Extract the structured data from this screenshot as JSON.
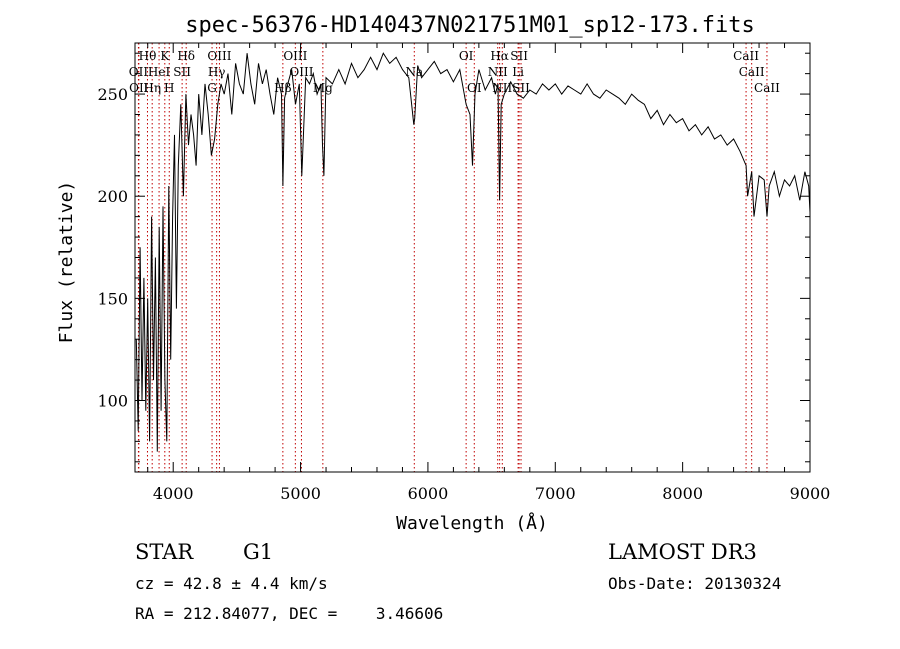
{
  "chart_data": {
    "type": "line",
    "title": "spec-56376-HD140437N021751M01_sp12-173.fits",
    "xlabel": "Wavelength (Å)",
    "ylabel": "Flux (relative)",
    "xlim": [
      3700,
      9000
    ],
    "ylim": [
      65,
      275
    ],
    "x_ticks": [
      4000,
      5000,
      6000,
      7000,
      8000,
      9000
    ],
    "y_ticks": [
      100,
      150,
      200,
      250
    ],
    "x_minor_step": 200,
    "y_minor_step": 10,
    "grid": false,
    "series": [
      {
        "name": "flux",
        "x": [
          3710,
          3725,
          3740,
          3755,
          3770,
          3785,
          3800,
          3815,
          3830,
          3845,
          3860,
          3875,
          3890,
          3905,
          3920,
          3935,
          3950,
          3965,
          3980,
          3995,
          4010,
          4025,
          4040,
          4060,
          4080,
          4100,
          4120,
          4140,
          4160,
          4180,
          4200,
          4225,
          4250,
          4275,
          4300,
          4325,
          4350,
          4375,
          4400,
          4430,
          4460,
          4490,
          4520,
          4550,
          4580,
          4610,
          4640,
          4670,
          4700,
          4730,
          4760,
          4790,
          4820,
          4850,
          4861,
          4875,
          4900,
          4930,
          4960,
          4990,
          5010,
          5040,
          5070,
          5100,
          5130,
          5160,
          5172,
          5183,
          5200,
          5250,
          5300,
          5350,
          5400,
          5450,
          5500,
          5550,
          5600,
          5650,
          5700,
          5750,
          5800,
          5850,
          5889,
          5896,
          5920,
          5950,
          6000,
          6050,
          6100,
          6150,
          6200,
          6250,
          6300,
          6330,
          6350,
          6370,
          6400,
          6450,
          6500,
          6530,
          6550,
          6563,
          6575,
          6600,
          6650,
          6700,
          6750,
          6800,
          6850,
          6900,
          6950,
          7000,
          7050,
          7100,
          7150,
          7200,
          7250,
          7300,
          7350,
          7400,
          7450,
          7500,
          7550,
          7600,
          7650,
          7700,
          7750,
          7800,
          7850,
          7900,
          7950,
          8000,
          8050,
          8100,
          8150,
          8200,
          8250,
          8300,
          8350,
          8400,
          8450,
          8498,
          8510,
          8542,
          8560,
          8600,
          8640,
          8662,
          8680,
          8720,
          8760,
          8800,
          8840,
          8880,
          8920,
          8960,
          8990,
          9000
        ],
        "y": [
          130,
          85,
          175,
          100,
          160,
          95,
          150,
          80,
          190,
          110,
          170,
          75,
          185,
          95,
          195,
          110,
          80,
          205,
          120,
          190,
          230,
          145,
          215,
          245,
          200,
          250,
          225,
          240,
          230,
          215,
          250,
          230,
          255,
          240,
          220,
          228,
          245,
          255,
          250,
          260,
          240,
          265,
          255,
          250,
          270,
          255,
          245,
          265,
          255,
          262,
          250,
          240,
          258,
          250,
          205,
          248,
          255,
          262,
          245,
          255,
          210,
          258,
          255,
          260,
          250,
          255,
          225,
          210,
          258,
          255,
          262,
          255,
          265,
          258,
          262,
          268,
          262,
          270,
          265,
          268,
          262,
          258,
          235,
          238,
          264,
          258,
          262,
          266,
          260,
          262,
          256,
          262,
          245,
          240,
          215,
          250,
          262,
          252,
          258,
          250,
          255,
          198,
          245,
          250,
          256,
          250,
          248,
          252,
          250,
          255,
          252,
          255,
          250,
          254,
          252,
          250,
          255,
          250,
          248,
          252,
          250,
          248,
          245,
          250,
          247,
          245,
          238,
          242,
          235,
          240,
          236,
          238,
          232,
          235,
          230,
          234,
          228,
          230,
          225,
          228,
          222,
          215,
          200,
          212,
          190,
          210,
          208,
          190,
          205,
          212,
          200,
          208,
          205,
          210,
          198,
          212,
          205,
          192
        ]
      }
    ],
    "line_labels": [
      "Hθ",
      "OII",
      "OII",
      "K",
      "HeI",
      "Hη",
      "SII",
      "H",
      "Hδ",
      "OIII",
      "Hγ",
      "G",
      "Hβ",
      "OIII",
      "OIII",
      "Mg",
      "Na",
      "OI",
      "OI",
      "Hα",
      "NII",
      "NII",
      "SII",
      "Li",
      "SII",
      "CaII",
      "CaII",
      "CaII"
    ],
    "line_positions": [
      3798,
      3727,
      3730,
      3934,
      3889,
      3835,
      4070,
      3969,
      4102,
      4363,
      4341,
      4305,
      4861,
      4959,
      5007,
      5175,
      5893,
      6300,
      6364,
      6563,
      6548,
      6584,
      6716,
      6708,
      6731,
      8498,
      8542,
      8662
    ],
    "line_label_rows": [
      0,
      1,
      2,
      0,
      1,
      2,
      1,
      2,
      0,
      0,
      1,
      2,
      2,
      0,
      1,
      2,
      1,
      0,
      2,
      0,
      1,
      2,
      0,
      1,
      2,
      0,
      1,
      2
    ]
  },
  "info": {
    "object_type": "STAR",
    "subclass": "G1",
    "survey": "LAMOST DR3",
    "cz": "cz = 42.8 ± 4.4 km/s",
    "obs_date": "Obs-Date: 20130324",
    "coords": "RA = 212.84077, DEC =    3.46606"
  }
}
